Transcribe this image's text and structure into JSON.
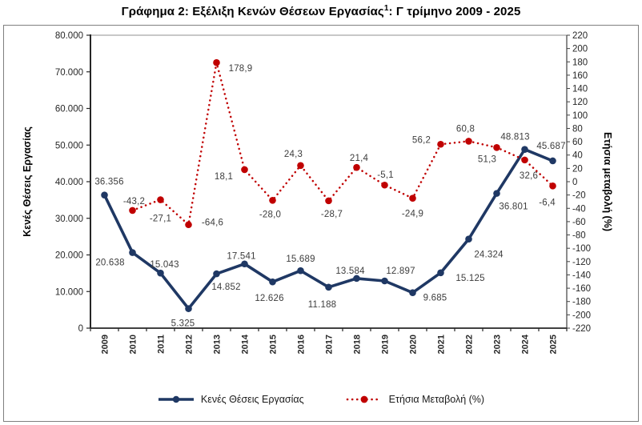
{
  "title": {
    "prefix": "Γράφημα 2: Εξέλιξη Κενών Θέσεων Εργασίας",
    "superscript": "1",
    "suffix": ": Γ τρίμηνο 2009 - 2025"
  },
  "chart_data": {
    "type": "line",
    "x": [
      "2009",
      "2010",
      "2011",
      "2012",
      "2013",
      "2014",
      "2015",
      "2016",
      "2017",
      "2018",
      "2019",
      "2020",
      "2021",
      "2022",
      "2023",
      "2024",
      "2025"
    ],
    "series": [
      {
        "name": "Κενές Θέσεις Εργασίας",
        "axis": "left",
        "color": "#1f3864",
        "line_style": "solid",
        "values": [
          36356,
          20638,
          15043,
          5325,
          14852,
          17541,
          12626,
          15689,
          11188,
          13584,
          12897,
          9685,
          15125,
          24324,
          36801,
          48813,
          45687
        ],
        "labels": [
          "36.356",
          "20.638",
          "15.043",
          "5.325",
          "14.852",
          "17.541",
          "12.626",
          "15.689",
          "11.188",
          "13.584",
          "12.897",
          "9.685",
          "15.125",
          "24.324",
          "36.801",
          "48.813",
          "45.687"
        ],
        "label_offsets": [
          [
            6,
            -17
          ],
          [
            -28,
            12
          ],
          [
            5,
            -11
          ],
          [
            -7,
            18
          ],
          [
            12,
            16
          ],
          [
            -4,
            -10
          ],
          [
            -4,
            20
          ],
          [
            0,
            -15
          ],
          [
            -8,
            21
          ],
          [
            -8,
            -10
          ],
          [
            20,
            -13
          ],
          [
            28,
            6
          ],
          [
            37,
            6
          ],
          [
            25,
            19
          ],
          [
            21,
            16
          ],
          [
            -12,
            -16
          ],
          [
            -2,
            -19
          ]
        ]
      },
      {
        "name": "Ετήσια Μεταβολή (%)",
        "axis": "right",
        "color": "#c00000",
        "line_style": "dotted",
        "values": [
          null,
          -43.2,
          -27.1,
          -64.6,
          178.9,
          18.1,
          -28.0,
          24.3,
          -28.7,
          21.4,
          -5.1,
          -24.9,
          56.2,
          60.8,
          51.3,
          32.6,
          -6.4
        ],
        "labels": [
          null,
          "-43,2",
          "-27,1",
          "-64,6",
          "178,9",
          "18,1",
          "-28,0",
          "24,3",
          "-28,7",
          "21,4",
          "-5,1",
          "-24,9",
          "56,2",
          "60,8",
          "51,3",
          "32,6",
          "-6,4"
        ],
        "label_offsets": [
          null,
          [
            2,
            -12
          ],
          [
            0,
            23
          ],
          [
            30,
            -3
          ],
          [
            30,
            7
          ],
          [
            -26,
            8
          ],
          [
            -3,
            17
          ],
          [
            -9,
            -15
          ],
          [
            4,
            16
          ],
          [
            3,
            -12
          ],
          [
            1,
            -13
          ],
          [
            0,
            19
          ],
          [
            -24,
            -6
          ],
          [
            -4,
            -16
          ],
          [
            -12,
            14
          ],
          [
            5,
            19
          ],
          [
            -7,
            20
          ]
        ]
      }
    ],
    "left_axis": {
      "title": "Κενές Θέσεις Εργασίας",
      "min": 0,
      "max": 80000,
      "step": 10000,
      "tick_labels": [
        "0",
        "10.000",
        "20.000",
        "30.000",
        "40.000",
        "50.000",
        "60.000",
        "70.000",
        "80.000"
      ]
    },
    "right_axis": {
      "title": "Ετήσια μεταβολή (%)",
      "min": -220,
      "max": 220,
      "step": 20,
      "tick_labels": [
        "220",
        "200",
        "180",
        "160",
        "140",
        "120",
        "100",
        "80",
        "60",
        "40",
        "20",
        "0",
        "-20",
        "-40",
        "-60",
        "-80",
        "-100",
        "-120",
        "-140",
        "-160",
        "-180",
        "-200",
        "-220"
      ]
    },
    "grid": false,
    "legend_position": "bottom"
  },
  "colors": {
    "frame_border": "#7f7f7f",
    "plot_top_line": "#a6a6a6",
    "axis_line": "#262626",
    "tick_text": "#262626",
    "data_label_text": "#3d3d3d"
  }
}
